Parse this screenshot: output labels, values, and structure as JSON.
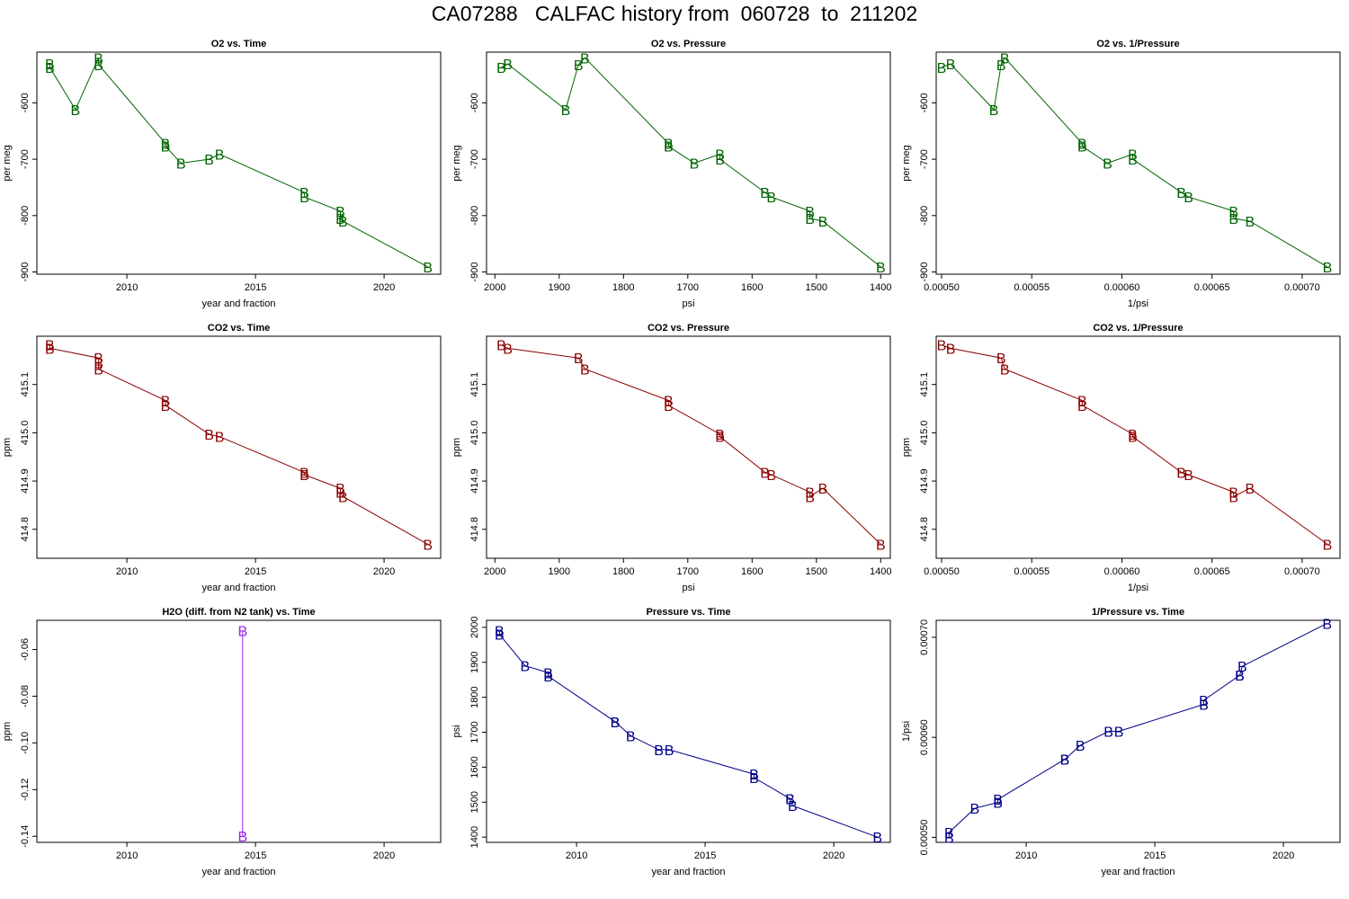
{
  "page_title": "CA07288   CALFAC history from  060728  to  211202",
  "colors": {
    "o2": "#006400",
    "co2": "#8b0000",
    "h2o": "#a020f0",
    "pressure": "#00008b"
  },
  "chart_data": [
    {
      "type": "line",
      "title": "O2 vs. Time",
      "xlabel": "year and fraction",
      "ylabel": "per meg",
      "color_key": "o2",
      "marker": "B",
      "xlim": [
        2006.5,
        2022.2
      ],
      "ylim": [
        -904,
        -510
      ],
      "xticks": [
        2010,
        2015,
        2020
      ],
      "yticks": [
        -600,
        -700,
        -800,
        -900
      ],
      "x": [
        2007.0,
        2007.0,
        2008.0,
        2008.9,
        2008.9,
        2011.5,
        2011.5,
        2012.1,
        2013.2,
        2013.6,
        2016.9,
        2016.9,
        2018.3,
        2018.3,
        2018.4,
        2021.7
      ],
      "y": [
        -531,
        -537,
        -612,
        -520,
        -532,
        -672,
        -677,
        -707,
        -700,
        -691,
        -759,
        -767,
        -792,
        -805,
        -810,
        -891
      ]
    },
    {
      "type": "line",
      "title": "O2 vs. Pressure",
      "xlabel": "psi",
      "ylabel": "per meg",
      "color_key": "o2",
      "marker": "B",
      "x_reversed": true,
      "xlim": [
        2013,
        1385
      ],
      "ylim": [
        -904,
        -510
      ],
      "xticks": [
        2000,
        1900,
        1800,
        1700,
        1600,
        1500,
        1400
      ],
      "yticks": [
        -600,
        -700,
        -800,
        -900
      ],
      "x": [
        1990,
        1980,
        1890,
        1870,
        1860,
        1730,
        1730,
        1690,
        1650,
        1650,
        1580,
        1570,
        1510,
        1510,
        1490,
        1400
      ],
      "y": [
        -537,
        -531,
        -612,
        -532,
        -520,
        -672,
        -677,
        -707,
        -691,
        -700,
        -759,
        -767,
        -792,
        -805,
        -810,
        -891
      ]
    },
    {
      "type": "line",
      "title": "O2 vs. 1/Pressure",
      "xlabel": "1/psi",
      "ylabel": "per meg",
      "color_key": "o2",
      "marker": "B",
      "xlim": [
        0.000497,
        0.000721
      ],
      "ylim": [
        -904,
        -510
      ],
      "xticks": [
        0.0005,
        0.00055,
        0.0006,
        0.00065,
        0.0007
      ],
      "xtick_labels": [
        "0.00050",
        "0.00055",
        "0.00060",
        "0.00065",
        "0.00070"
      ],
      "yticks": [
        -600,
        -700,
        -800,
        -900
      ],
      "x": [
        0.0005,
        0.000505,
        0.000529,
        0.000533,
        0.000535,
        0.000578,
        0.000578,
        0.000592,
        0.000606,
        0.000606,
        0.000633,
        0.000637,
        0.000662,
        0.000662,
        0.000671,
        0.000714
      ],
      "y": [
        -537,
        -531,
        -612,
        -532,
        -520,
        -672,
        -677,
        -707,
        -691,
        -700,
        -759,
        -767,
        -792,
        -805,
        -810,
        -891
      ]
    },
    {
      "type": "line",
      "title": "CO2 vs. Time",
      "xlabel": "year and fraction",
      "ylabel": "ppm",
      "color_key": "co2",
      "marker": "B",
      "xlim": [
        2006.5,
        2022.2
      ],
      "ylim": [
        414.74,
        415.2
      ],
      "xticks": [
        2010,
        2015,
        2020
      ],
      "yticks": [
        415.1,
        415.0,
        414.9,
        414.8
      ],
      "ytick_labels": [
        "415.1",
        "415.0",
        "414.9",
        "414.8"
      ],
      "x": [
        2007.0,
        2007.0,
        2008.9,
        2008.9,
        2008.9,
        2011.5,
        2011.5,
        2013.2,
        2013.6,
        2016.9,
        2016.9,
        2018.3,
        2018.3,
        2018.4,
        2021.7
      ],
      "y": [
        415.182,
        415.175,
        415.155,
        415.145,
        415.132,
        415.067,
        415.057,
        414.997,
        414.992,
        414.918,
        414.913,
        414.885,
        414.877,
        414.868,
        414.769
      ]
    },
    {
      "type": "line",
      "title": "CO2 vs. Pressure",
      "xlabel": "psi",
      "ylabel": "ppm",
      "color_key": "co2",
      "marker": "B",
      "x_reversed": true,
      "xlim": [
        2013,
        1385
      ],
      "ylim": [
        414.74,
        415.2
      ],
      "xticks": [
        2000,
        1900,
        1800,
        1700,
        1600,
        1500,
        1400
      ],
      "yticks": [
        415.1,
        415.0,
        414.9,
        414.8
      ],
      "ytick_labels": [
        "415.1",
        "415.0",
        "414.9",
        "414.8"
      ],
      "x": [
        1990,
        1980,
        1870,
        1860,
        1730,
        1730,
        1650,
        1650,
        1580,
        1570,
        1510,
        1510,
        1490,
        1400
      ],
      "y": [
        415.182,
        415.175,
        415.155,
        415.132,
        415.067,
        415.057,
        414.997,
        414.992,
        414.918,
        414.913,
        414.877,
        414.868,
        414.885,
        414.769
      ]
    },
    {
      "type": "line",
      "title": "CO2 vs. 1/Pressure",
      "xlabel": "1/psi",
      "ylabel": "ppm",
      "color_key": "co2",
      "marker": "B",
      "xlim": [
        0.000497,
        0.000721
      ],
      "ylim": [
        414.74,
        415.2
      ],
      "xticks": [
        0.0005,
        0.00055,
        0.0006,
        0.00065,
        0.0007
      ],
      "xtick_labels": [
        "0.00050",
        "0.00055",
        "0.00060",
        "0.00065",
        "0.00070"
      ],
      "yticks": [
        415.1,
        415.0,
        414.9,
        414.8
      ],
      "ytick_labels": [
        "415.1",
        "415.0",
        "414.9",
        "414.8"
      ],
      "x": [
        0.0005,
        0.000505,
        0.000533,
        0.000535,
        0.000578,
        0.000578,
        0.000606,
        0.000606,
        0.000633,
        0.000637,
        0.000662,
        0.000662,
        0.000671,
        0.000714
      ],
      "y": [
        415.182,
        415.175,
        415.155,
        415.132,
        415.067,
        415.057,
        414.997,
        414.992,
        414.918,
        414.913,
        414.877,
        414.868,
        414.885,
        414.769
      ]
    },
    {
      "type": "line",
      "title": "H2O (diff. from N2 tank) vs. Time",
      "xlabel": "year and fraction",
      "ylabel": "ppm",
      "color_key": "h2o",
      "marker": "B",
      "xlim": [
        2006.5,
        2022.2
      ],
      "ylim": [
        -0.1426,
        -0.0475
      ],
      "xticks": [
        2010,
        2015,
        2020
      ],
      "yticks": [
        -0.06,
        -0.08,
        -0.1,
        -0.12,
        -0.14
      ],
      "ytick_labels": [
        "-0.06",
        "-0.08",
        "-0.10",
        "-0.12",
        "-0.14"
      ],
      "x": [
        2014.5,
        2014.5
      ],
      "y": [
        -0.052,
        -0.14
      ]
    },
    {
      "type": "line",
      "title": "Pressure vs. Time",
      "xlabel": "year and fraction",
      "ylabel": "psi",
      "color_key": "pressure",
      "marker": "B",
      "xlim": [
        2006.5,
        2022.2
      ],
      "ylim": [
        1385,
        2020
      ],
      "xticks": [
        2010,
        2015,
        2020
      ],
      "yticks": [
        1400,
        1500,
        1600,
        1700,
        1800,
        1900,
        2000
      ],
      "x": [
        2007.0,
        2007.0,
        2008.0,
        2008.9,
        2008.9,
        2011.5,
        2011.5,
        2012.1,
        2013.2,
        2013.6,
        2016.9,
        2016.9,
        2018.3,
        2018.3,
        2018.4,
        2021.7
      ],
      "y": [
        1990,
        1980,
        1890,
        1870,
        1860,
        1730,
        1730,
        1690,
        1650,
        1650,
        1580,
        1570,
        1510,
        1510,
        1490,
        1400
      ]
    },
    {
      "type": "line",
      "title": "1/Pressure vs. Time",
      "xlabel": "year and fraction",
      "ylabel": "1/psi",
      "color_key": "pressure",
      "marker": "B",
      "xlim": [
        2006.5,
        2022.2
      ],
      "ylim": [
        0.000495,
        0.000717
      ],
      "xticks": [
        2010,
        2015,
        2020
      ],
      "yticks": [
        0.0005,
        0.0006,
        0.0007
      ],
      "ytick_labels": [
        "0.00050",
        "0.00060",
        "0.00070"
      ],
      "x": [
        2007.0,
        2007.0,
        2008.0,
        2008.9,
        2008.9,
        2011.5,
        2011.5,
        2012.1,
        2013.2,
        2013.6,
        2016.9,
        2016.9,
        2018.3,
        2018.3,
        2018.4,
        2021.7
      ],
      "y": [
        0.0005,
        0.000505,
        0.000529,
        0.000535,
        0.000538,
        0.000578,
        0.000578,
        0.000592,
        0.000606,
        0.000606,
        0.000633,
        0.000637,
        0.000662,
        0.000662,
        0.000671,
        0.000714
      ]
    }
  ]
}
